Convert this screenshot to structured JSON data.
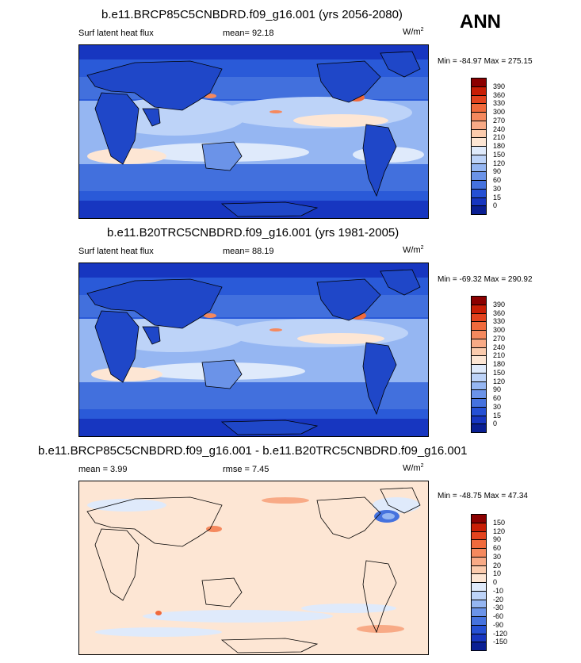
{
  "season": "ANN",
  "panels": [
    {
      "title": "b.e11.BRCP85C5CNBDRD.f09_g16.001 (yrs 2056-2080)",
      "left_label": "Surf latent heat flux",
      "center_label": "mean=  92.18",
      "units": "W/m",
      "units_sup": "2",
      "minmax": "Min = -84.97 Max = 275.15",
      "palette": "abs"
    },
    {
      "title": "b.e11.B20TRC5CNBDRD.f09_g16.001 (yrs 1981-2005)",
      "left_label": "Surf latent heat flux",
      "center_label": "mean=  88.19",
      "units": "W/m",
      "units_sup": "2",
      "minmax": "Min = -69.32 Max = 290.92",
      "palette": "abs"
    },
    {
      "title": "b.e11.BRCP85C5CNBDRD.f09_g16.001 - b.e11.B20TRC5CNBDRD.f09_g16.001",
      "left_label": "mean =   3.99",
      "center_label": "rmse =   7.45",
      "units": "W/m",
      "units_sup": "2",
      "minmax": "Min = -48.75 Max =  47.34",
      "palette": "diff"
    }
  ],
  "colorbars": {
    "abs": {
      "labels": [
        "390",
        "360",
        "330",
        "300",
        "270",
        "240",
        "210",
        "180",
        "150",
        "120",
        "90",
        "60",
        "30",
        "15",
        "0"
      ],
      "colors": [
        "#8b0000",
        "#c81e05",
        "#e3431e",
        "#f06a3c",
        "#f5895e",
        "#f8aa86",
        "#fbcbad",
        "#fde6d4",
        "#dfeafb",
        "#bdd3f8",
        "#95b6f2",
        "#6b93e8",
        "#4572de",
        "#2550d4",
        "#1736c0",
        "#0a1f93"
      ]
    },
    "diff": {
      "labels": [
        "150",
        "120",
        "90",
        "60",
        "30",
        "20",
        "10",
        "0",
        "-10",
        "-20",
        "-30",
        "-60",
        "-90",
        "-120",
        "-150"
      ],
      "colors": [
        "#8b0000",
        "#c81e05",
        "#e3431e",
        "#f06a3c",
        "#f5895e",
        "#f8aa86",
        "#fbcbad",
        "#fde6d4",
        "#dfeafb",
        "#bdd3f8",
        "#95b6f2",
        "#6b93e8",
        "#4572de",
        "#2550d4",
        "#1736c0",
        "#0a1f93"
      ]
    }
  }
}
